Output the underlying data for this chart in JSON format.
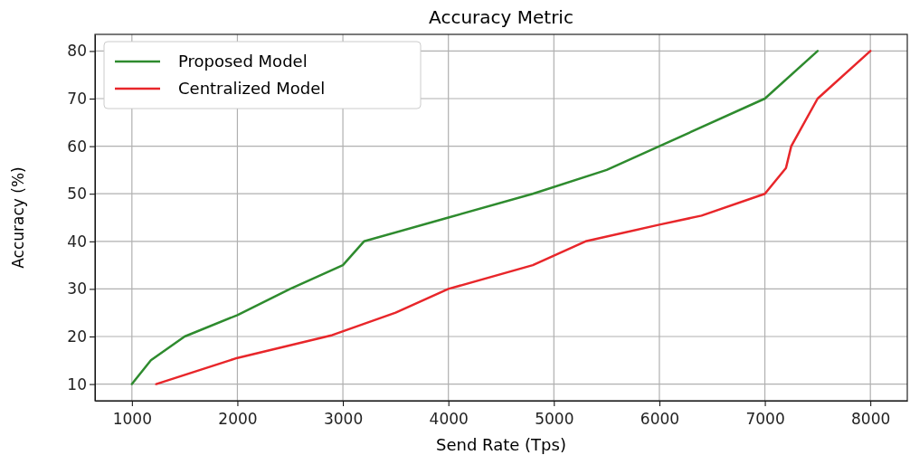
{
  "chart_data": {
    "type": "line",
    "title": "Accuracy Metric",
    "xlabel": "Send Rate (Tps)",
    "ylabel": "Accuracy (%)",
    "xlim": [
      650,
      8350
    ],
    "xticks": [
      1000,
      2000,
      3000,
      4000,
      5000,
      6000,
      7000,
      8000
    ],
    "ylim": [
      6.5,
      83.5
    ],
    "yticks": [
      10,
      20,
      30,
      40,
      50,
      60,
      70,
      80
    ],
    "grid": true,
    "legend": "top left",
    "line_style": "solid",
    "series": [
      {
        "name": "Proposed Model",
        "color": "#2e8b2e",
        "x": [
          1000,
          1180,
          1500,
          2000,
          2500,
          3000,
          3200,
          4000,
          4800,
          5500,
          6000,
          7000,
          7500
        ],
        "values": [
          10,
          15,
          20,
          24.5,
          30,
          35,
          40,
          45,
          50,
          55,
          60,
          70,
          80
        ]
      },
      {
        "name": "Centralized Model",
        "color": "#e8262a",
        "x": [
          1230,
          2000,
          2900,
          3500,
          4000,
          4800,
          5300,
          6000,
          6400,
          7000,
          7200,
          7250,
          7500,
          8000
        ],
        "values": [
          10,
          15.5,
          20.3,
          25,
          30,
          35,
          40,
          43.5,
          45.4,
          50,
          55.4,
          60,
          70,
          80
        ]
      }
    ]
  }
}
